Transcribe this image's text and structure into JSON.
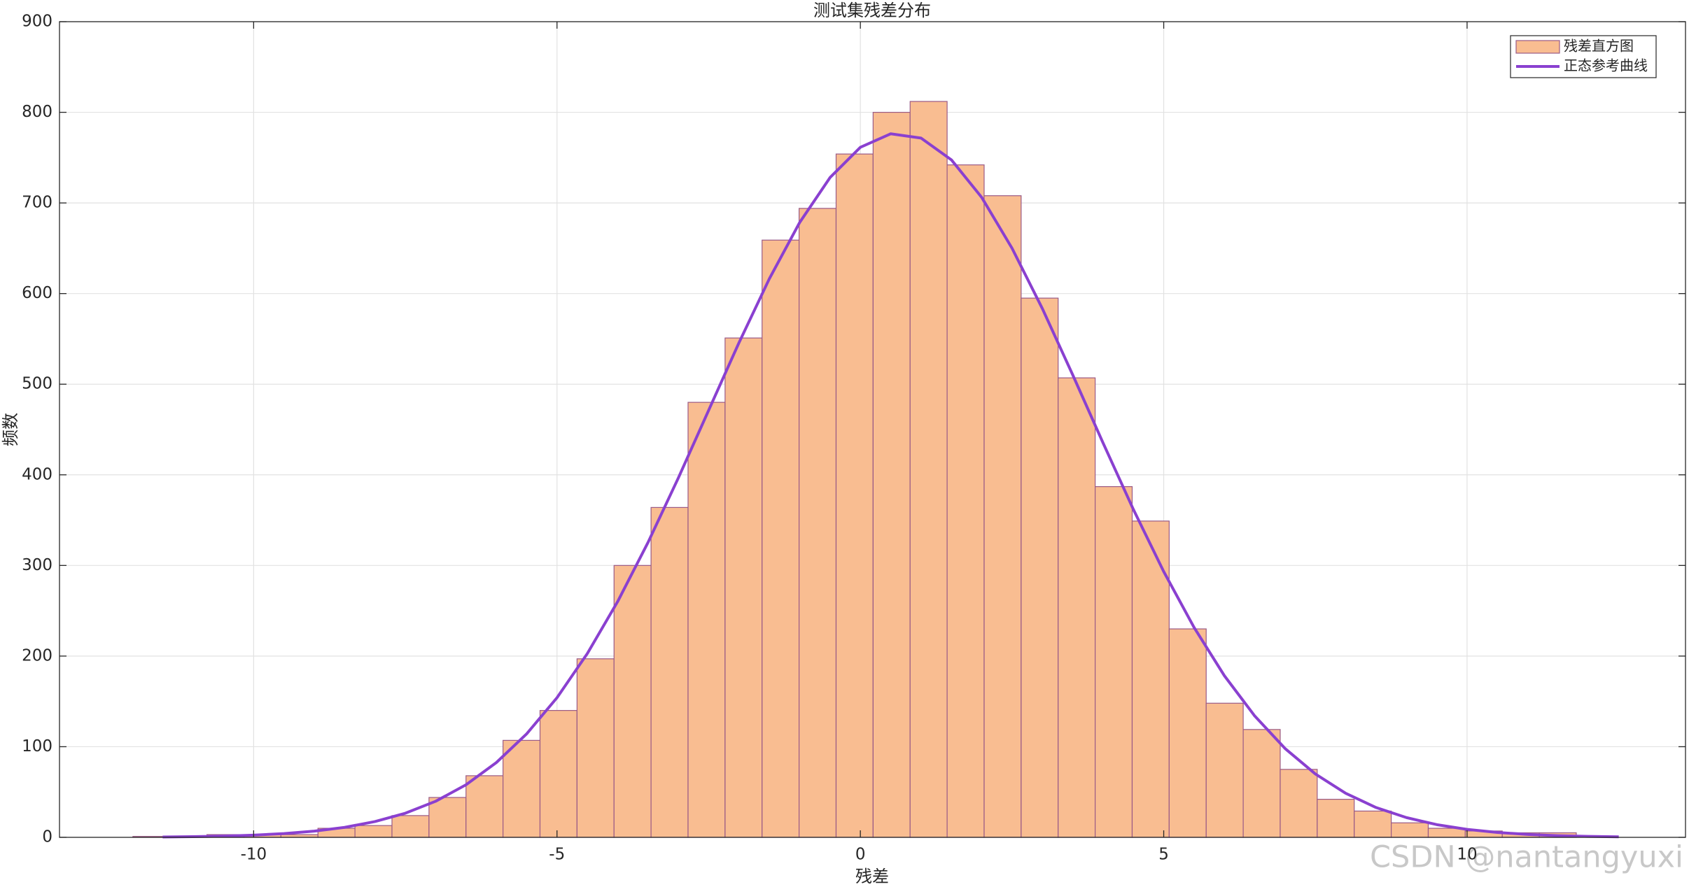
{
  "chart_data": {
    "type": "histogram",
    "title": "测试集残差分布",
    "x_label": "残差",
    "y_label": "频数",
    "watermark": "CSDN @nantangyuxi",
    "bins": [
      -11.99,
      -11.38,
      -10.77,
      -10.16,
      -9.55,
      -8.94,
      -8.33,
      -7.72,
      -7.11,
      -6.5,
      -5.89,
      -5.28,
      -4.67,
      -4.06,
      -3.45,
      -2.84,
      -2.23,
      -1.62,
      -1.01,
      -0.4,
      0.21,
      0.82,
      1.43,
      2.04,
      2.65,
      3.26,
      3.87,
      4.48,
      5.09,
      5.7,
      6.31,
      6.92,
      7.53,
      8.14,
      8.75,
      9.36,
      9.97,
      10.58,
      11.19,
      11.8
    ],
    "series": [
      {
        "name": "残差直方图",
        "type": "histogram",
        "color": "#f9bd91",
        "edge_color": "#9a5a86",
        "values": [
          1,
          1,
          3,
          3,
          3,
          10,
          13,
          24,
          44,
          68,
          107,
          140,
          197,
          300,
          364,
          480,
          551,
          659,
          694,
          754,
          800,
          812,
          742,
          708,
          595,
          507,
          387,
          349,
          230,
          148,
          119,
          75,
          42,
          29,
          16,
          10,
          7,
          5,
          5
        ]
      },
      {
        "name": "正态参考曲线",
        "type": "line",
        "color": "#8a40d0",
        "x": [
          -11.5,
          -11,
          -10.5,
          -10,
          -9.5,
          -9,
          -8.5,
          -8,
          -7.5,
          -7,
          -6.5,
          -6,
          -5.5,
          -5,
          -4.5,
          -4,
          -3.5,
          -3,
          -2.5,
          -2,
          -1.5,
          -1,
          -0.5,
          0,
          0.5,
          1,
          1.5,
          2,
          2.5,
          3,
          3.5,
          4,
          4.5,
          5,
          5.5,
          6,
          6.5,
          7,
          7.5,
          8,
          8.5,
          9,
          9.5,
          10,
          10.5,
          11,
          11.5,
          12,
          12.5
        ],
        "values": [
          0.43,
          0.78,
          1.4,
          2.43,
          4.13,
          6.84,
          11.0,
          17.4,
          26.6,
          39.8,
          58.0,
          82.5,
          114.2,
          154.1,
          202.8,
          260.2,
          325.4,
          396.6,
          471.3,
          545.9,
          616.4,
          678.5,
          728.0,
          761.4,
          776.3,
          771.6,
          747.6,
          706.1,
          650.0,
          583.4,
          510.3,
          435.2,
          361.8,
          293.2,
          231.6,
          178.3,
          133.9,
          98.0,
          69.9,
          48.6,
          32.9,
          21.8,
          14.0,
          8.8,
          5.39,
          3.21,
          1.87,
          1.06,
          0.58
        ]
      }
    ],
    "xlim": [
      -13.2,
      13.6
    ],
    "ylim": [
      0,
      900
    ],
    "xticks": [
      -10,
      -5,
      0,
      5,
      10
    ],
    "yticks": [
      0,
      100,
      200,
      300,
      400,
      500,
      600,
      700,
      800,
      900
    ],
    "grid": true,
    "legend": "upper right"
  }
}
